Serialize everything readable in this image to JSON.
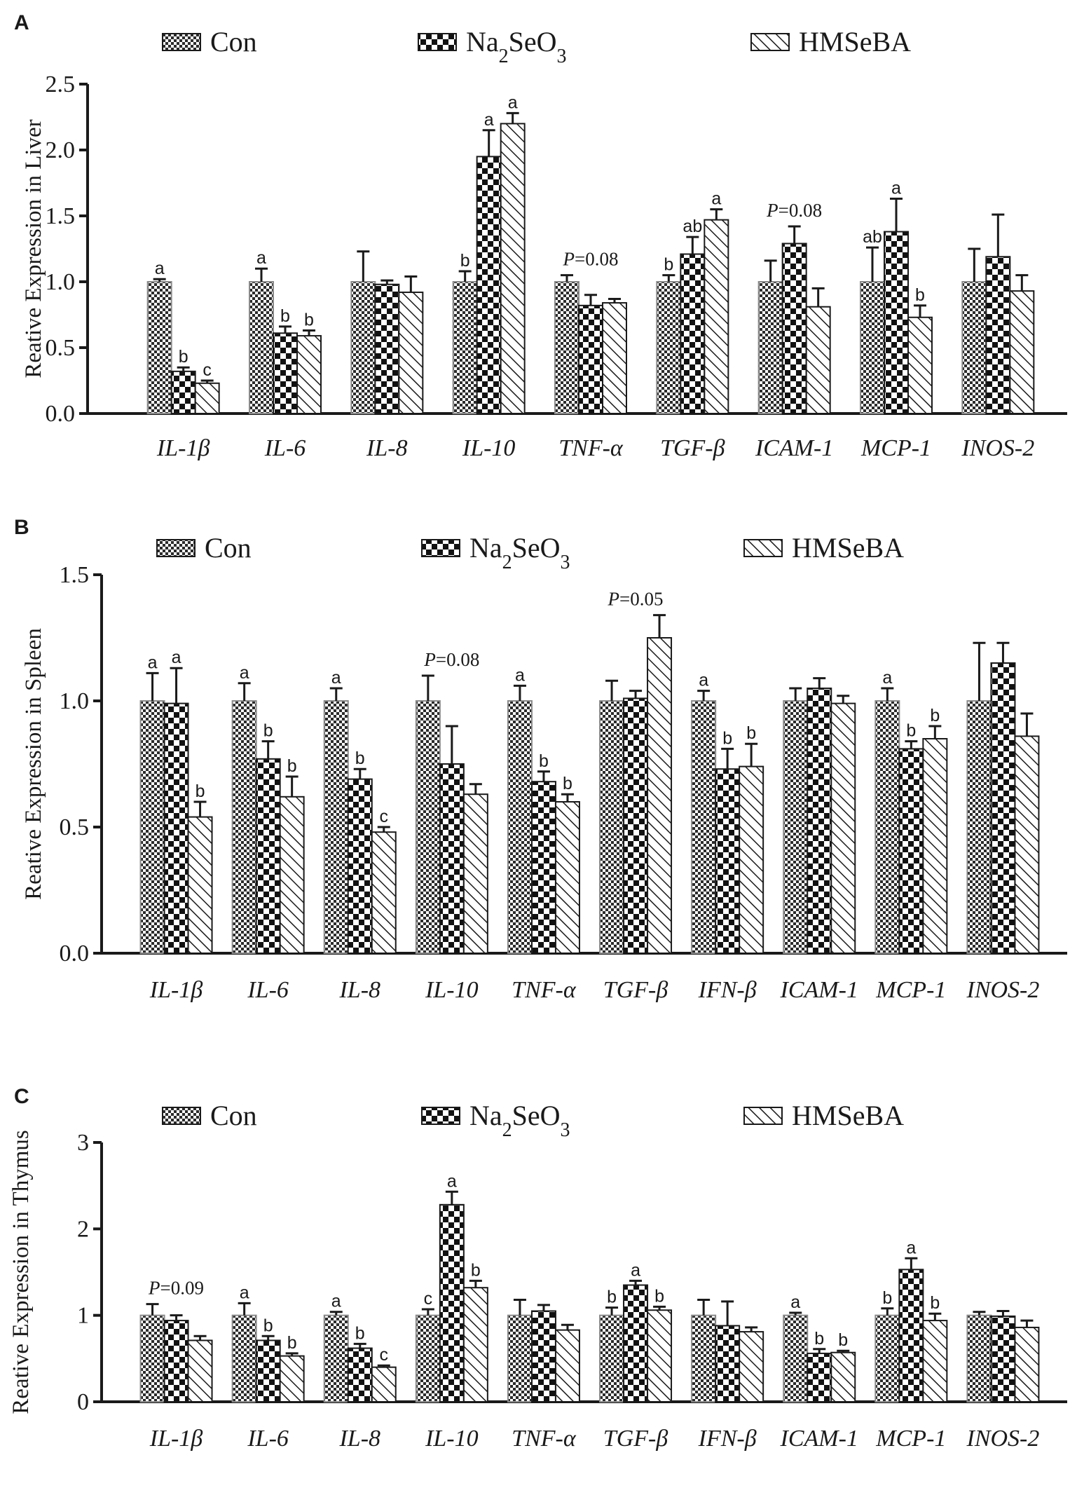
{
  "legend": {
    "series": [
      {
        "label": "Con",
        "pattern": "fine-checker"
      },
      {
        "label": "Na2SeO3",
        "pattern": "coarse-checker"
      },
      {
        "label": "HMSeBA",
        "pattern": "diagonal-hatch"
      }
    ]
  },
  "colors": {
    "ink": "#1a1a1a",
    "background": "#ffffff"
  },
  "chart_data": [
    {
      "panel": "A",
      "type": "bar",
      "ylabel": "Reative Expression in Liver",
      "ylim": [
        0,
        2.5
      ],
      "yticks": [
        "0.0",
        "0.5",
        "1.0",
        "1.5",
        "2.0",
        "2.5"
      ],
      "ytick_values": [
        0,
        0.5,
        1.0,
        1.5,
        2.0,
        2.5
      ],
      "categories": [
        "IL-1β",
        "IL-6",
        "IL-8",
        "IL-10",
        "TNF-α",
        "TGF-β",
        "ICAM-1",
        "MCP-1",
        "INOS-2"
      ],
      "series": [
        {
          "name": "Con",
          "values": [
            1.0,
            1.0,
            1.0,
            1.0,
            1.0,
            1.0,
            1.0,
            1.0,
            1.0
          ],
          "errors": [
            0.02,
            0.1,
            0.23,
            0.08,
            0.05,
            0.05,
            0.16,
            0.26,
            0.25
          ],
          "letters": [
            "a",
            "a",
            "",
            "b",
            "",
            "b",
            "",
            "ab",
            ""
          ]
        },
        {
          "name": "Na2SeO3",
          "values": [
            0.32,
            0.61,
            0.98,
            1.95,
            0.82,
            1.21,
            1.29,
            1.38,
            1.19
          ],
          "errors": [
            0.03,
            0.05,
            0.03,
            0.2,
            0.08,
            0.13,
            0.13,
            0.25,
            0.32
          ],
          "letters": [
            "b",
            "b",
            "",
            "a",
            "",
            "ab",
            "",
            "a",
            ""
          ]
        },
        {
          "name": "HMSeBA",
          "values": [
            0.23,
            0.59,
            0.92,
            2.2,
            0.84,
            1.47,
            0.81,
            0.73,
            0.93
          ],
          "errors": [
            0.02,
            0.04,
            0.12,
            0.08,
            0.03,
            0.08,
            0.14,
            0.09,
            0.12
          ],
          "letters": [
            "c",
            "b",
            "",
            "a",
            "",
            "a",
            "",
            "b",
            ""
          ]
        }
      ],
      "p_values": [
        {
          "category": "TNF-α",
          "text": "P=0.08"
        },
        {
          "category": "ICAM-1",
          "text": "P=0.08"
        }
      ]
    },
    {
      "panel": "B",
      "type": "bar",
      "ylabel": "Reative Expression in Spleen",
      "ylim": [
        0,
        1.5
      ],
      "yticks": [
        "0.0",
        "0.5",
        "1.0",
        "1.5"
      ],
      "ytick_values": [
        0,
        0.5,
        1.0,
        1.5
      ],
      "categories": [
        "IL-1β",
        "IL-6",
        "IL-8",
        "IL-10",
        "TNF-α",
        "TGF-β",
        "IFN-β",
        "ICAM-1",
        "MCP-1",
        "INOS-2"
      ],
      "series": [
        {
          "name": "Con",
          "values": [
            1.0,
            1.0,
            1.0,
            1.0,
            1.0,
            1.0,
            1.0,
            1.0,
            1.0,
            1.0
          ],
          "errors": [
            0.11,
            0.07,
            0.05,
            0.1,
            0.06,
            0.08,
            0.04,
            0.05,
            0.05,
            0.23
          ],
          "letters": [
            "a",
            "a",
            "a",
            "",
            "a",
            "",
            "a",
            "",
            "a",
            ""
          ]
        },
        {
          "name": "Na2SeO3",
          "values": [
            0.99,
            0.77,
            0.69,
            0.75,
            0.68,
            1.01,
            0.73,
            1.05,
            0.81,
            1.15
          ],
          "errors": [
            0.14,
            0.07,
            0.04,
            0.15,
            0.04,
            0.03,
            0.08,
            0.04,
            0.03,
            0.08
          ],
          "letters": [
            "a",
            "b",
            "b",
            "",
            "b",
            "",
            "b",
            "",
            "b",
            ""
          ]
        },
        {
          "name": "HMSeBA",
          "values": [
            0.54,
            0.62,
            0.48,
            0.63,
            0.6,
            1.25,
            0.74,
            0.99,
            0.85,
            0.86
          ],
          "errors": [
            0.06,
            0.08,
            0.02,
            0.04,
            0.03,
            0.09,
            0.09,
            0.03,
            0.05,
            0.09
          ],
          "letters": [
            "b",
            "b",
            "c",
            "",
            "b",
            "",
            "b",
            "",
            "b",
            ""
          ]
        }
      ],
      "p_values": [
        {
          "category": "IL-10",
          "text": "P=0.08"
        },
        {
          "category": "TGF-β",
          "text": "P=0.05"
        }
      ]
    },
    {
      "panel": "C",
      "type": "bar",
      "ylabel": "Reative Expression in Thymus",
      "ylim": [
        0,
        3
      ],
      "yticks": [
        "0",
        "1",
        "2",
        "3"
      ],
      "ytick_values": [
        0,
        1,
        2,
        3
      ],
      "categories": [
        "IL-1β",
        "IL-6",
        "IL-8",
        "IL-10",
        "TNF-α",
        "TGF-β",
        "IFN-β",
        "ICAM-1",
        "MCP-1",
        "INOS-2"
      ],
      "series": [
        {
          "name": "Con",
          "values": [
            1.0,
            1.0,
            1.0,
            1.0,
            1.0,
            1.0,
            1.0,
            1.0,
            1.0,
            1.0
          ],
          "errors": [
            0.13,
            0.14,
            0.04,
            0.07,
            0.18,
            0.09,
            0.18,
            0.03,
            0.08,
            0.04
          ],
          "letters": [
            "",
            "a",
            "a",
            "c",
            "",
            "b",
            "",
            "a",
            "b",
            ""
          ]
        },
        {
          "name": "Na2SeO3",
          "values": [
            0.94,
            0.71,
            0.62,
            2.28,
            1.05,
            1.35,
            0.88,
            0.56,
            1.53,
            0.99
          ],
          "errors": [
            0.06,
            0.05,
            0.05,
            0.15,
            0.07,
            0.05,
            0.28,
            0.05,
            0.13,
            0.06
          ],
          "letters": [
            "",
            "b",
            "b",
            "a",
            "",
            "a",
            "",
            "b",
            "a",
            ""
          ]
        },
        {
          "name": "HMSeBA",
          "values": [
            0.71,
            0.53,
            0.4,
            1.32,
            0.83,
            1.06,
            0.81,
            0.57,
            0.94,
            0.86
          ],
          "errors": [
            0.05,
            0.03,
            0.02,
            0.08,
            0.06,
            0.04,
            0.05,
            0.02,
            0.08,
            0.08
          ],
          "letters": [
            "",
            "b",
            "c",
            "b",
            "",
            "b",
            "",
            "b",
            "b",
            ""
          ]
        }
      ],
      "p_values": [
        {
          "category": "IL-1β",
          "text": "P=0.09"
        }
      ]
    }
  ]
}
